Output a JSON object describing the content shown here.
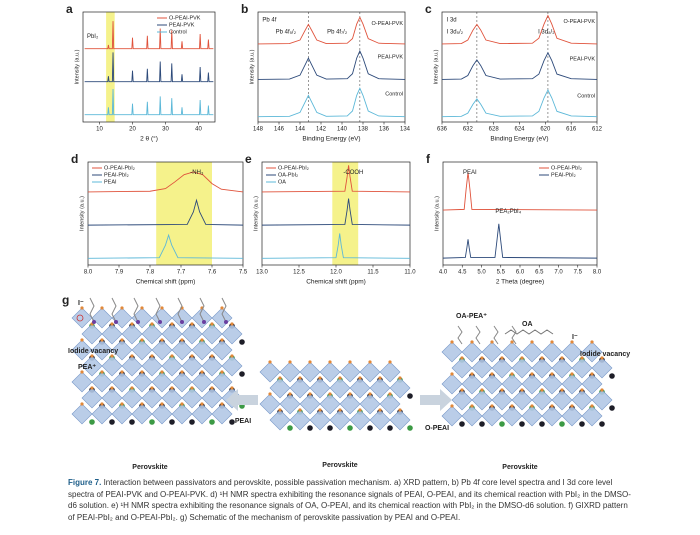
{
  "chart_data": [
    {
      "type": "line",
      "label": "a",
      "xlabel": "2 θ (°)",
      "ylabel": "Intensity (a.u.)",
      "xlim": [
        5,
        45
      ],
      "ylim": [
        0,
        3
      ],
      "xticks": [
        10,
        20,
        30,
        40
      ],
      "legend": "upper right",
      "highlight_x": [
        12,
        14.6
      ],
      "highlight_color": "#f3ef6e",
      "annotations": [
        "PbI₂"
      ],
      "x": [
        5.5,
        12.5,
        12.7,
        12.9,
        13.9,
        14.1,
        14.3,
        19.8,
        20,
        20.2,
        24.3,
        24.5,
        24.7,
        28.2,
        28.4,
        28.6,
        31.7,
        31.9,
        32.1,
        34.8,
        35,
        35.2,
        40.3,
        40.5,
        40.7,
        42.8,
        43,
        43.2,
        44.5
      ],
      "series": [
        {
          "name": "O-PEAI-PVK",
          "color": "#e0533c",
          "values": [
            2.0,
            2.0,
            2.1,
            2.0,
            2.0,
            2.75,
            2.0,
            2.0,
            2.3,
            2.0,
            2.0,
            2.35,
            2.0,
            2.0,
            2.55,
            2.0,
            2.0,
            2.5,
            2.0,
            2.0,
            2.2,
            2.0,
            2.0,
            2.4,
            2.0,
            2.0,
            2.25,
            2.0,
            2.0
          ]
        },
        {
          "name": "PEAI-PVK",
          "color": "#2d4a7a",
          "values": [
            1.1,
            1.1,
            1.25,
            1.1,
            1.1,
            1.9,
            1.1,
            1.1,
            1.4,
            1.1,
            1.1,
            1.45,
            1.1,
            1.1,
            1.65,
            1.1,
            1.1,
            1.6,
            1.1,
            1.1,
            1.3,
            1.1,
            1.1,
            1.5,
            1.1,
            1.1,
            1.35,
            1.1,
            1.1
          ]
        },
        {
          "name": "Control",
          "color": "#5cb8d8",
          "values": [
            0.2,
            0.2,
            0.4,
            0.2,
            0.2,
            0.9,
            0.2,
            0.2,
            0.5,
            0.2,
            0.2,
            0.55,
            0.2,
            0.2,
            0.7,
            0.2,
            0.2,
            0.65,
            0.2,
            0.2,
            0.4,
            0.2,
            0.2,
            0.6,
            0.2,
            0.2,
            0.45,
            0.2,
            0.2
          ]
        }
      ]
    },
    {
      "type": "line",
      "label": "b",
      "xlabel": "Binding Energy (eV)",
      "ylabel": "Intensity (a.u.)",
      "xlim": [
        148,
        134
      ],
      "ylim": [
        0,
        3.1
      ],
      "xticks": [
        148,
        146,
        144,
        142,
        140,
        138,
        136,
        134
      ],
      "legend": "curve",
      "reference_lines": [
        143.2,
        138.3
      ],
      "annotations": [
        "Pb 4f",
        "Pb 4f₅/₂",
        "Pb 4f₇/₂"
      ],
      "x": [
        148,
        145,
        144,
        143.5,
        143.2,
        142.9,
        142.4,
        141.5,
        139.5,
        139,
        138.6,
        138.3,
        138,
        137.5,
        136.5,
        134
      ],
      "series": [
        {
          "name": "O-PEAI-PVK",
          "color": "#e0533c",
          "values": [
            2.2,
            2.21,
            2.31,
            2.59,
            2.75,
            2.59,
            2.31,
            2.21,
            2.22,
            2.35,
            2.76,
            2.95,
            2.76,
            2.35,
            2.22,
            2.2
          ]
        },
        {
          "name": "PEAI-PVK",
          "color": "#2d4a7a",
          "values": [
            1.2,
            1.21,
            1.32,
            1.62,
            1.8,
            1.62,
            1.32,
            1.21,
            1.22,
            1.36,
            1.8,
            2.0,
            1.8,
            1.36,
            1.22,
            1.2
          ]
        },
        {
          "name": "Control",
          "color": "#5cb8d8",
          "values": [
            0.15,
            0.16,
            0.27,
            0.57,
            0.75,
            0.57,
            0.27,
            0.16,
            0.17,
            0.31,
            0.75,
            0.95,
            0.75,
            0.31,
            0.17,
            0.15
          ]
        }
      ]
    },
    {
      "type": "line",
      "label": "c",
      "xlabel": "Binding Energy (eV)",
      "ylabel": "Intensity (a.u.)",
      "xlim": [
        636,
        612
      ],
      "ylim": [
        0,
        3.1
      ],
      "xticks": [
        636,
        632,
        628,
        624,
        620,
        616,
        612
      ],
      "legend": "curve",
      "reference_lines": [
        630.6,
        619.6
      ],
      "annotations": [
        "I 3d",
        "I 3d₅/₂",
        "I 3d₃/₂"
      ],
      "x": [
        636,
        633,
        632,
        631.2,
        630.6,
        630,
        629.2,
        627,
        622,
        621,
        620.2,
        619.6,
        619,
        618.2,
        616,
        612
      ],
      "series": [
        {
          "name": "O-PEAI-PVK",
          "color": "#e0533c",
          "values": [
            2.2,
            2.21,
            2.31,
            2.59,
            2.75,
            2.59,
            2.31,
            2.21,
            2.22,
            2.36,
            2.76,
            3.0,
            2.76,
            2.36,
            2.22,
            2.2
          ]
        },
        {
          "name": "PEAI-PVK",
          "color": "#2d4a7a",
          "values": [
            1.2,
            1.21,
            1.31,
            1.59,
            1.75,
            1.59,
            1.31,
            1.21,
            1.22,
            1.35,
            1.73,
            1.95,
            1.73,
            1.35,
            1.22,
            1.2
          ]
        },
        {
          "name": "Control",
          "color": "#5cb8d8",
          "values": [
            0.15,
            0.16,
            0.25,
            0.5,
            0.65,
            0.5,
            0.25,
            0.16,
            0.17,
            0.3,
            0.68,
            0.9,
            0.68,
            0.3,
            0.17,
            0.15
          ]
        }
      ]
    },
    {
      "type": "line",
      "label": "d",
      "xlabel": "Chemical shift (ppm)",
      "ylabel": "Intensity (a.u.)",
      "xlim": [
        8.0,
        7.5
      ],
      "ylim": [
        0,
        3.1
      ],
      "xticks": [
        {
          "value": 8,
          "label": "8.0"
        },
        7.9,
        7.8,
        7.7,
        7.6,
        7.5
      ],
      "legend": "upper left",
      "highlight_x": [
        7.78,
        7.6
      ],
      "highlight_color": "#f3ef6e",
      "annotations": [
        "-NH₃"
      ],
      "series": [
        {
          "name": "O-PEAI-PbI₂",
          "color": "#e0533c",
          "x": [
            8,
            7.8,
            7.75,
            7.72,
            7.69,
            7.66,
            7.63,
            7.6,
            7.57,
            7.5
          ],
          "values": [
            2.2,
            2.22,
            2.3,
            2.5,
            2.72,
            2.8,
            2.72,
            2.45,
            2.28,
            2.2
          ]
        },
        {
          "name": "PEAI-PbI₂",
          "color": "#2d4a7a",
          "x": [
            8,
            7.68,
            7.66,
            7.65,
            7.64,
            7.62,
            7.5
          ],
          "values": [
            1.2,
            1.22,
            1.6,
            1.95,
            1.6,
            1.22,
            1.2
          ]
        },
        {
          "name": "PEAI",
          "color": "#5cb8d8",
          "x": [
            8,
            7.77,
            7.75,
            7.74,
            7.73,
            7.71,
            7.5
          ],
          "values": [
            0.2,
            0.22,
            0.6,
            0.9,
            0.6,
            0.22,
            0.2
          ]
        }
      ]
    },
    {
      "type": "line",
      "label": "e",
      "xlabel": "Chemical shift (ppm)",
      "ylabel": "Intensity (a.u.)",
      "xlim": [
        13,
        11
      ],
      "ylim": [
        0,
        3.1
      ],
      "xticks": [
        {
          "value": 13,
          "label": "13.0"
        },
        12.5,
        {
          "value": 12,
          "label": "12.0"
        },
        11.5,
        {
          "value": 11,
          "label": "11.0"
        }
      ],
      "legend": "upper left",
      "highlight_x": [
        12.05,
        11.7
      ],
      "highlight_color": "#f3ef6e",
      "annotations": [
        "-COOH"
      ],
      "series": [
        {
          "name": "O-PEAI-PbI₂",
          "color": "#e0533c",
          "x": [
            13,
            11.88,
            11.85,
            11.83,
            11.81,
            11.78,
            11
          ],
          "values": [
            2.2,
            2.22,
            2.65,
            3.0,
            2.65,
            2.22,
            2.2
          ]
        },
        {
          "name": "OA-PbI₂",
          "color": "#2d4a7a",
          "x": [
            13,
            11.88,
            11.85,
            11.83,
            11.81,
            11.78,
            11
          ],
          "values": [
            1.2,
            1.22,
            1.65,
            2.0,
            1.65,
            1.22,
            1.2
          ]
        },
        {
          "name": "OA",
          "color": "#5cb8d8",
          "x": [
            13,
            12.0,
            11.97,
            11.95,
            11.93,
            11.9,
            11
          ],
          "values": [
            0.2,
            0.22,
            0.6,
            0.95,
            0.6,
            0.22,
            0.2
          ]
        }
      ]
    },
    {
      "type": "line",
      "label": "f",
      "xlabel": "2 Theta (degree)",
      "ylabel": "Intensity (a.u.)",
      "xlim": [
        4,
        8
      ],
      "ylim": [
        0,
        3
      ],
      "xticks": [
        {
          "value": 4,
          "label": "4.0"
        },
        4.5,
        {
          "value": 5,
          "label": "5.0"
        },
        5.5,
        {
          "value": 6,
          "label": "6.0"
        },
        6.5,
        {
          "value": 7,
          "label": "7.0"
        },
        7.5,
        {
          "value": 8,
          "label": "8.0"
        }
      ],
      "legend": "upper right",
      "annotations": [
        "PEAI",
        "PEA₂PbI₄"
      ],
      "series": [
        {
          "name": "O-PEAI-PbI₂",
          "color": "#e0533c",
          "x": [
            4,
            4.55,
            4.6,
            4.65,
            4.7,
            4.75,
            8
          ],
          "values": [
            1.6,
            1.62,
            2.2,
            2.7,
            2.2,
            1.62,
            1.6
          ]
        },
        {
          "name": "PEAI-PbI₂",
          "color": "#2d4a7a",
          "x": [
            4,
            4.58,
            4.62,
            4.65,
            4.68,
            4.72,
            5.35,
            5.4,
            5.45,
            5.5,
            5.55,
            8
          ],
          "values": [
            0.2,
            0.22,
            0.5,
            0.75,
            0.5,
            0.22,
            0.22,
            0.7,
            1.2,
            0.7,
            0.22,
            0.2
          ]
        }
      ]
    }
  ],
  "schematic": {
    "label": "g",
    "left": {
      "ion": "I⁻",
      "vacancy": "Iodide vacancy",
      "cation": "PEA⁺",
      "name": "Perovskite"
    },
    "center": {
      "name": "Perovskite"
    },
    "arrows": [
      "PEAI",
      "O-PEAI"
    ],
    "right": {
      "cation": "OA-PEA⁺",
      "acid": "OA",
      "ion": "I⁻",
      "vacancy": "Iodide vacancy",
      "name": "Perovskite"
    }
  },
  "caption": {
    "label": "Figure 7.",
    "text": "Interaction between passivators and perovskite, possible passivation mechanism. a) XRD pattern, b) Pb 4f core level spectra and I 3d core level spectra of PEAI-PVK and O-PEAI-PVK. d) ¹H NMR spectra exhibiting the resonance signals of PEAI, O-PEAI, and its chemical reaction with PbI₂ in the DMSO-d6 solution. e) ¹H NMR spectra exhibiting the resonance signals of OA, O-PEAI, and its chemical reaction with PbI₂ in the DMSO-d6 solution. f) GIXRD pattern of PEAI-PbI₂ and O-PEAI-PbI₂. g) Schematic of the mechanism of perovskite passivation by PEAI and O-PEAI."
  }
}
